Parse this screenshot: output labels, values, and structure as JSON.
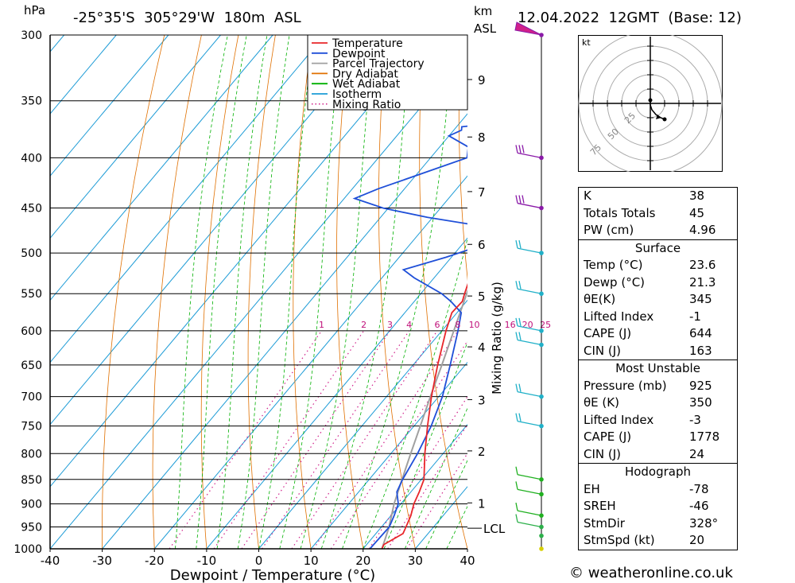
{
  "header": {
    "pressure_unit": "hPa",
    "location": "-25°35'S  305°29'W  180m  ASL",
    "km_label": "km",
    "asl_label": "ASL",
    "datetime": "12.04.2022  12GMT  (Base: 12)"
  },
  "chart_data": {
    "type": "skew-t",
    "xlabel": "Dewpoint / Temperature (°C)",
    "ylabel_right": "Mixing Ratio (g/kg)",
    "xlim": [
      -40,
      40
    ],
    "ylim_hpa": [
      1000,
      300
    ],
    "pressure_ticks": [
      300,
      350,
      400,
      450,
      500,
      550,
      600,
      650,
      700,
      750,
      800,
      850,
      900,
      950,
      1000
    ],
    "temp_ticks": [
      -40,
      -30,
      -20,
      -10,
      0,
      10,
      20,
      30,
      40
    ],
    "height_ticks_km": [
      {
        "km": "1",
        "p": 898
      },
      {
        "km": "2",
        "p": 795
      },
      {
        "km": "3",
        "p": 705
      },
      {
        "km": "4",
        "p": 623
      },
      {
        "km": "5",
        "p": 553
      },
      {
        "km": "6",
        "p": 490
      },
      {
        "km": "7",
        "p": 433
      },
      {
        "km": "8",
        "p": 381
      },
      {
        "km": "9",
        "p": 333
      }
    ],
    "lcl": {
      "label": "LCL",
      "p": 953
    },
    "mixing_ratio_labels": [
      "1",
      "2",
      "3",
      "4",
      "6",
      "8",
      "10",
      "16",
      "20",
      "25"
    ],
    "mixing_ratios_gkg": [
      1,
      2,
      3,
      4,
      6,
      8,
      10,
      16,
      20,
      25
    ],
    "legend": [
      {
        "name": "Temperature",
        "color": "#e8262a",
        "style": "solid"
      },
      {
        "name": "Dewpoint",
        "color": "#1f4fd8",
        "style": "solid"
      },
      {
        "name": "Parcel Trajectory",
        "color": "#a0a0a0",
        "style": "solid"
      },
      {
        "name": "Dry Adiabat",
        "color": "#e07000",
        "style": "solid"
      },
      {
        "name": "Wet Adiabat",
        "color": "#00b000",
        "style": "solid"
      },
      {
        "name": "Isotherm",
        "color": "#1c9bd6",
        "style": "solid"
      },
      {
        "name": "Mixing Ratio",
        "color": "#d0208a",
        "style": "dotted"
      }
    ],
    "series": [
      {
        "name": "Temperature",
        "color": "#e8262a",
        "points": [
          [
            1000,
            23.6
          ],
          [
            990,
            23.3
          ],
          [
            965,
            25.2
          ],
          [
            950,
            24.7
          ],
          [
            925,
            23.8
          ],
          [
            900,
            22.5
          ],
          [
            875,
            21.6
          ],
          [
            850,
            20.5
          ],
          [
            800,
            16.5
          ],
          [
            750,
            12.6
          ],
          [
            700,
            8.6
          ],
          [
            650,
            4.7
          ],
          [
            600,
            0.8
          ],
          [
            575,
            -1.0
          ],
          [
            560,
            -0.8
          ],
          [
            550,
            -1.6
          ],
          [
            525,
            -3.5
          ],
          [
            500,
            -5.8
          ],
          [
            475,
            -8.5
          ],
          [
            450,
            -11.0
          ],
          [
            425,
            -14.0
          ],
          [
            400,
            -17.5
          ],
          [
            375,
            -21.5
          ],
          [
            360,
            -24.2
          ],
          [
            355,
            -25.0
          ],
          [
            350,
            -25.2
          ],
          [
            325,
            -28.4
          ],
          [
            310,
            -30.8
          ],
          [
            300,
            -33.3
          ]
        ]
      },
      {
        "name": "Dewpoint",
        "color": "#1f4fd8",
        "points": [
          [
            1000,
            21.3
          ],
          [
            950,
            21.5
          ],
          [
            925,
            20.6
          ],
          [
            900,
            19.5
          ],
          [
            875,
            17.3
          ],
          [
            850,
            16.4
          ],
          [
            800,
            15.1
          ],
          [
            750,
            13.3
          ],
          [
            700,
            10.7
          ],
          [
            650,
            7.1
          ],
          [
            600,
            3.1
          ],
          [
            575,
            0.8
          ],
          [
            560,
            -3.0
          ],
          [
            550,
            -6.0
          ],
          [
            530,
            -13.8
          ],
          [
            520,
            -17.2
          ],
          [
            505,
            -11.0
          ],
          [
            495,
            -7.5
          ],
          [
            480,
            -5.5
          ],
          [
            468,
            -11.0
          ],
          [
            460,
            -21.0
          ],
          [
            450,
            -31.0
          ],
          [
            440,
            -38.0
          ],
          [
            430,
            -35.0
          ],
          [
            400,
            -23.0
          ],
          [
            390,
            -24.5
          ],
          [
            380,
            -30.0
          ],
          [
            375,
            -28.5
          ],
          [
            372,
            -29.0
          ],
          [
            367,
            -20.0
          ],
          [
            355,
            -25.5
          ],
          [
            340,
            -31.0
          ],
          [
            320,
            -42.0
          ],
          [
            310,
            -50.0
          ],
          [
            305,
            -42.0
          ],
          [
            300,
            -36.5
          ]
        ]
      },
      {
        "name": "Parcel Trajectory",
        "color": "#a0a0a0",
        "points": [
          [
            1000,
            23.6
          ],
          [
            953,
            21.6
          ],
          [
            925,
            20.1
          ],
          [
            900,
            18.7
          ],
          [
            850,
            16.3
          ],
          [
            800,
            13.8
          ],
          [
            750,
            11.2
          ],
          [
            700,
            8.4
          ],
          [
            650,
            5.5
          ],
          [
            600,
            2.3
          ],
          [
            550,
            -1.2
          ],
          [
            500,
            -5.3
          ],
          [
            450,
            -10.0
          ],
          [
            400,
            -15.8
          ],
          [
            350,
            -22.8
          ],
          [
            300,
            -31.0
          ]
        ]
      }
    ],
    "wind_barbs": [
      {
        "p": 300,
        "flag": true
      },
      {
        "p": 400,
        "barbs": 3
      },
      {
        "p": 450,
        "barbs": 3
      },
      {
        "p": 500,
        "barbs": 2
      },
      {
        "p": 550,
        "barbs": 2
      },
      {
        "p": 600,
        "barbs": 2
      },
      {
        "p": 620,
        "barbs": 2
      },
      {
        "p": 700,
        "barbs": 2
      },
      {
        "p": 750,
        "barbs": 2
      },
      {
        "p": 850,
        "barbs": 1
      },
      {
        "p": 880,
        "barbs": 1
      },
      {
        "p": 925,
        "barbs": 1
      },
      {
        "p": 950,
        "barbs": 1
      },
      {
        "p": 970,
        "barbs": 0
      },
      {
        "p": 1000,
        "barbs": 0
      }
    ]
  },
  "hodograph": {
    "unit": "kt",
    "ring_labels": [
      "25",
      "50",
      "75"
    ]
  },
  "indices": [
    {
      "label": "K",
      "value": "38"
    },
    {
      "label": "Totals Totals",
      "value": "45"
    },
    {
      "label": "PW (cm)",
      "value": "4.96"
    }
  ],
  "surface": {
    "title": "Surface",
    "rows": [
      {
        "label": "Temp (°C)",
        "value": "23.6"
      },
      {
        "label": "Dewp (°C)",
        "value": "21.3"
      },
      {
        "label": "θE(K)",
        "value": "345"
      },
      {
        "label": "Lifted Index",
        "value": "-1"
      },
      {
        "label": "CAPE (J)",
        "value": "644"
      },
      {
        "label": "CIN (J)",
        "value": "163"
      }
    ]
  },
  "most_unstable": {
    "title": "Most Unstable",
    "rows": [
      {
        "label": "Pressure (mb)",
        "value": "925"
      },
      {
        "label": "θE (K)",
        "value": "350"
      },
      {
        "label": "Lifted Index",
        "value": "-3"
      },
      {
        "label": "CAPE (J)",
        "value": "1778"
      },
      {
        "label": "CIN (J)",
        "value": "24"
      }
    ]
  },
  "hodograph_table": {
    "title": "Hodograph",
    "rows": [
      {
        "label": "EH",
        "value": "-78"
      },
      {
        "label": "SREH",
        "value": "-46"
      },
      {
        "label": "StmDir",
        "value": "328°"
      },
      {
        "label": "StmSpd (kt)",
        "value": "20"
      }
    ]
  },
  "footer": {
    "credit": "© weatheronline.co.uk"
  }
}
